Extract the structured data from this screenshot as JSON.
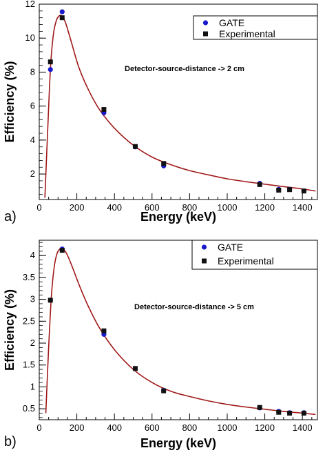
{
  "colors": {
    "gate_marker": "#1a1acc",
    "experimental_marker": "#111111",
    "fit_curve": "#a01818"
  },
  "chart_data": [
    {
      "panel_label": "a)",
      "type": "scatter",
      "annotation": "Detector-source-distance -> 2 cm",
      "xlabel": "Energy (keV)",
      "ylabel": "Efficiency (%)",
      "xlim": [
        0,
        1480
      ],
      "ylim": [
        0.5,
        12
      ],
      "x_ticks": [
        0,
        200,
        400,
        600,
        800,
        1000,
        1200,
        1400
      ],
      "y_ticks": [
        2,
        4,
        6,
        8,
        10,
        12
      ],
      "legend_position": "top-right",
      "grid": false,
      "series": [
        {
          "name": "GATE",
          "marker": "circle",
          "x": [
            59.5,
            122,
            344,
            511,
            662,
            1173,
            1274,
            1332,
            1408
          ],
          "y": [
            8.15,
            11.55,
            5.6,
            3.6,
            2.48,
            1.45,
            1.1,
            1.1,
            1.0
          ]
        },
        {
          "name": "Experimental",
          "marker": "square",
          "x": [
            59.5,
            122,
            344,
            511,
            662,
            1173,
            1274,
            1332,
            1408
          ],
          "y": [
            8.6,
            11.2,
            5.8,
            3.62,
            2.62,
            1.38,
            1.05,
            1.08,
            1.0
          ]
        },
        {
          "style": "line",
          "x": [
            30,
            45,
            60,
            75,
            90,
            105,
            120,
            140,
            170,
            210,
            260,
            320,
            400,
            500,
            600,
            700,
            800,
            900,
            1000,
            1100,
            1200,
            1300,
            1400,
            1470
          ],
          "y": [
            0.6,
            4.6,
            8.3,
            10.2,
            11.0,
            11.3,
            11.3,
            10.9,
            9.8,
            8.3,
            7.0,
            5.8,
            4.7,
            3.7,
            3.0,
            2.55,
            2.2,
            1.95,
            1.72,
            1.55,
            1.4,
            1.26,
            1.12,
            1.0
          ]
        }
      ]
    },
    {
      "panel_label": "b)",
      "type": "scatter",
      "annotation": "Detector-source-distance -> 5 cm",
      "xlabel": "Energy (keV)",
      "ylabel": "Efficiency (%)",
      "xlim": [
        0,
        1480
      ],
      "ylim": [
        0.25,
        4.35
      ],
      "x_ticks": [
        0,
        200,
        400,
        600,
        800,
        1000,
        1200,
        1400
      ],
      "y_ticks": [
        0.5,
        1,
        1.5,
        2,
        2.5,
        3,
        3.5,
        4
      ],
      "legend_position": "top-right",
      "grid": false,
      "series": [
        {
          "name": "GATE",
          "marker": "circle",
          "x": [
            59.5,
            122,
            344,
            511,
            662,
            1173,
            1274,
            1332,
            1408
          ],
          "y": [
            2.98,
            4.15,
            2.2,
            1.42,
            0.92,
            0.52,
            0.44,
            0.41,
            0.41
          ]
        },
        {
          "name": "Experimental",
          "marker": "square",
          "x": [
            59.5,
            122,
            344,
            511,
            662,
            1173,
            1274,
            1332,
            1408
          ],
          "y": [
            2.98,
            4.12,
            2.28,
            1.42,
            0.91,
            0.53,
            0.42,
            0.4,
            0.4
          ]
        },
        {
          "style": "line",
          "x": [
            35,
            50,
            65,
            80,
            95,
            110,
            125,
            145,
            175,
            215,
            260,
            320,
            400,
            500,
            600,
            700,
            800,
            900,
            1000,
            1100,
            1200,
            1300,
            1400,
            1470
          ],
          "y": [
            0.4,
            1.9,
            3.1,
            3.75,
            4.05,
            4.15,
            4.15,
            4.05,
            3.75,
            3.3,
            2.85,
            2.35,
            1.85,
            1.4,
            1.1,
            0.9,
            0.78,
            0.68,
            0.6,
            0.54,
            0.49,
            0.44,
            0.4,
            0.37
          ]
        }
      ]
    }
  ]
}
